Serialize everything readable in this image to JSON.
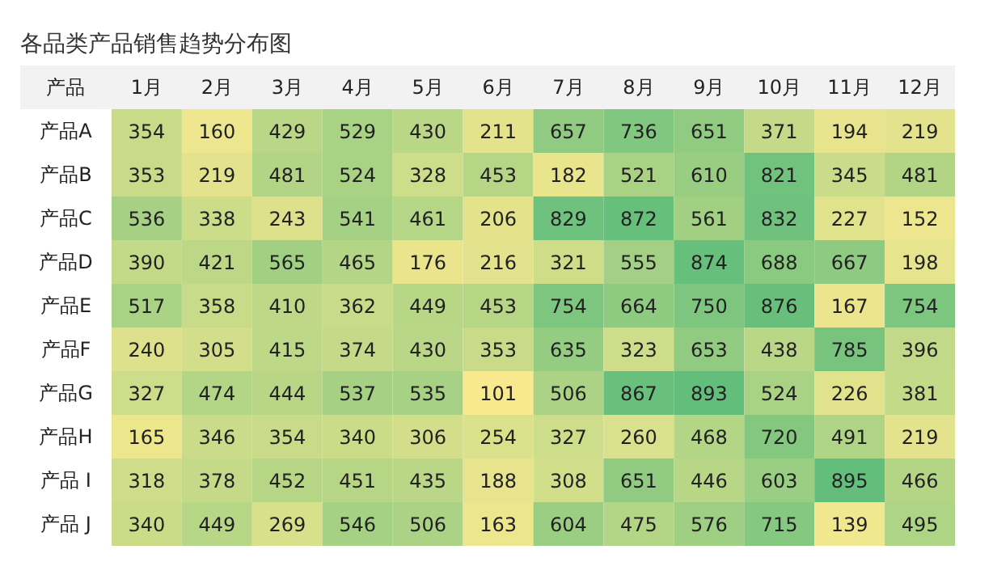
{
  "chart_data": {
    "type": "heatmap",
    "title": "各品类产品销售趋势分布图",
    "ylabel": "产品",
    "categories": [
      "1月",
      "2月",
      "3月",
      "4月",
      "5月",
      "6月",
      "7月",
      "8月",
      "9月",
      "10月",
      "11月",
      "12月"
    ],
    "y_categories": [
      "产品A",
      "产品B",
      "产品C",
      "产品D",
      "产品E",
      "产品F",
      "产品G",
      "产品H",
      "产品 I",
      "产品 J"
    ],
    "cells": [
      [
        354,
        160,
        429,
        529,
        430,
        211,
        657,
        736,
        651,
        371,
        194,
        219
      ],
      [
        353,
        219,
        481,
        524,
        328,
        453,
        182,
        521,
        610,
        821,
        345,
        481
      ],
      [
        536,
        338,
        243,
        541,
        461,
        206,
        829,
        872,
        561,
        832,
        227,
        152
      ],
      [
        390,
        421,
        565,
        465,
        176,
        216,
        321,
        555,
        874,
        688,
        667,
        198
      ],
      [
        517,
        358,
        410,
        362,
        449,
        453,
        754,
        664,
        750,
        876,
        167,
        754
      ],
      [
        240,
        305,
        415,
        374,
        430,
        353,
        635,
        323,
        653,
        438,
        785,
        396
      ],
      [
        327,
        474,
        444,
        537,
        535,
        101,
        506,
        867,
        893,
        524,
        226,
        381
      ],
      [
        165,
        346,
        354,
        340,
        306,
        254,
        327,
        260,
        468,
        720,
        491,
        219
      ],
      [
        318,
        378,
        452,
        451,
        435,
        188,
        308,
        651,
        446,
        603,
        895,
        466
      ],
      [
        340,
        449,
        269,
        546,
        506,
        163,
        604,
        475,
        576,
        715,
        139,
        495
      ]
    ],
    "data_labels": true
  }
}
